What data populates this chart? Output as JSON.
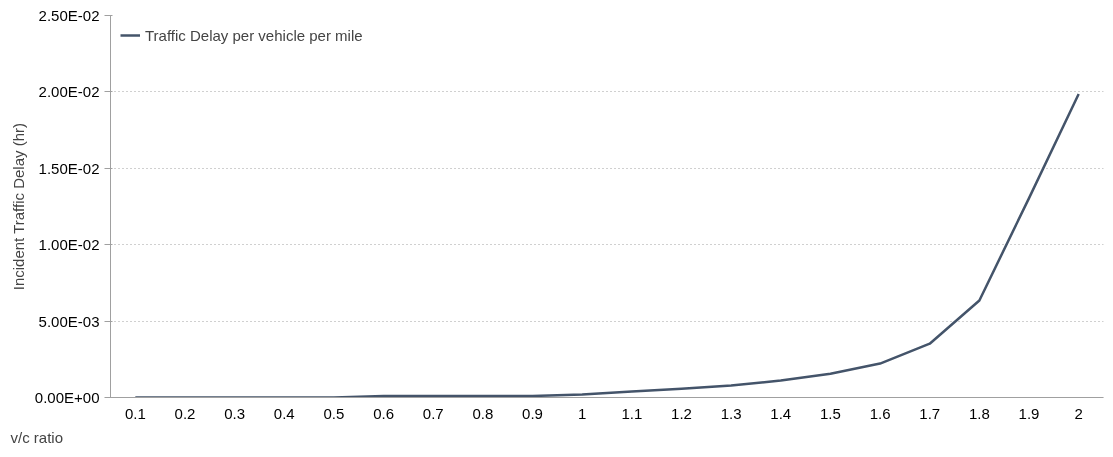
{
  "chart_data": {
    "type": "line",
    "xlabel": "v/c ratio",
    "ylabel": "Incident Traffic Delay (hr)",
    "categories": [
      "0.1",
      "0.2",
      "0.3",
      "0.4",
      "0.5",
      "0.6",
      "0.7",
      "0.8",
      "0.9",
      "1",
      "1.1",
      "1.2",
      "1.3",
      "1.4",
      "1.5",
      "1.6",
      "1.7",
      "1.8",
      "1.9",
      "2"
    ],
    "series": [
      {
        "name": "Traffic Delay per vehicle per mile",
        "color": "#44546a",
        "values": [
          0,
          0,
          0,
          0,
          0,
          0.0001,
          0.0001,
          0.0001,
          0.0001,
          0.0002,
          0.00039,
          0.00058,
          0.00079,
          0.00111,
          0.00155,
          0.00222,
          0.00352,
          0.00635,
          0.01305,
          0.01986
        ]
      }
    ],
    "ylim": [
      0,
      0.025
    ],
    "yticks": [
      {
        "value": 0,
        "label": "0.00E+00"
      },
      {
        "value": 0.005,
        "label": "5.00E-03"
      },
      {
        "value": 0.01,
        "label": "1.00E-02"
      },
      {
        "value": 0.015,
        "label": "1.50E-02"
      },
      {
        "value": 0.02,
        "label": "2.00E-02"
      },
      {
        "value": 0.025,
        "label": "2.50E-02"
      }
    ],
    "grid": "y",
    "legend": "top left",
    "marker": "none",
    "line_style": "solid"
  }
}
